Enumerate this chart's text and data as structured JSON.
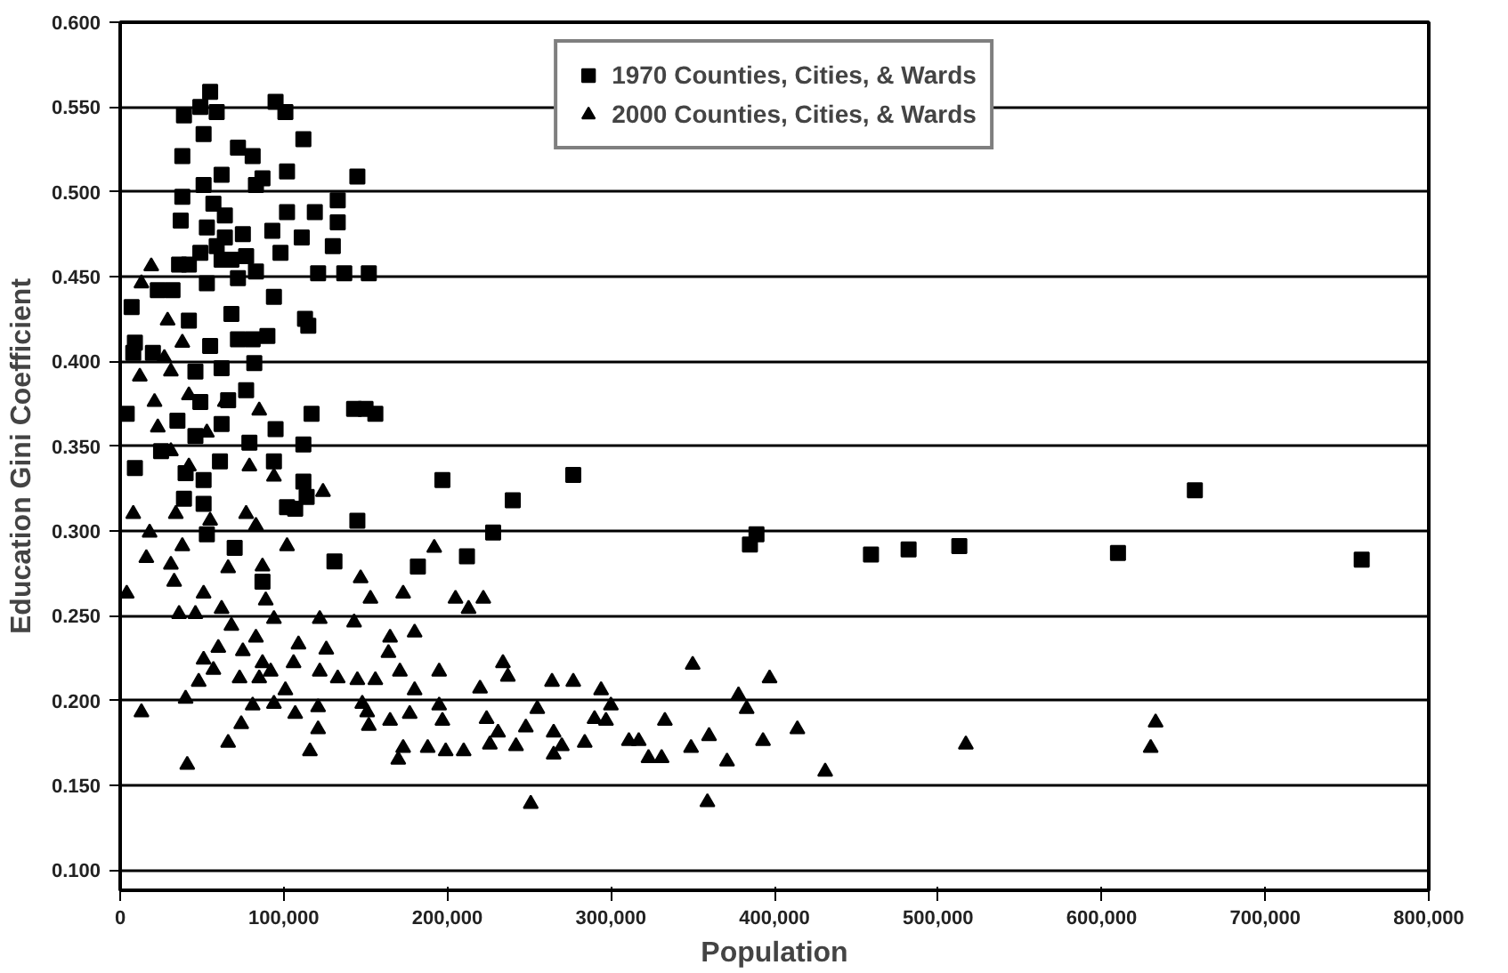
{
  "chart_data": {
    "type": "scatter",
    "xlabel": "Population",
    "ylabel": "Education Gini Coefficient",
    "xlim": [
      0,
      800000
    ],
    "ylim": [
      0.088,
      0.6
    ],
    "xticks": [
      0,
      {
        "value": 100000,
        "label": "100,000"
      },
      {
        "value": 200000,
        "label": "200,000"
      },
      {
        "value": 300000,
        "label": "300,000"
      },
      {
        "value": 400000,
        "label": "400,000"
      },
      {
        "value": 500000,
        "label": "500,000"
      },
      {
        "value": 600000,
        "label": "600,000"
      },
      {
        "value": 700000,
        "label": "700,000"
      },
      {
        "value": 800000,
        "label": "800,000"
      }
    ],
    "yticks": [
      {
        "value": 0.1,
        "label": "0.100"
      },
      {
        "value": 0.15,
        "label": "0.150"
      },
      {
        "value": 0.2,
        "label": "0.200"
      },
      {
        "value": 0.25,
        "label": "0.250"
      },
      {
        "value": 0.3,
        "label": "0.300"
      },
      {
        "value": 0.35,
        "label": "0.350"
      },
      {
        "value": 0.4,
        "label": "0.400"
      },
      {
        "value": 0.45,
        "label": "0.450"
      },
      {
        "value": 0.5,
        "label": "0.500"
      },
      {
        "value": 0.55,
        "label": "0.550"
      },
      {
        "value": 0.6,
        "label": "0.600"
      }
    ],
    "grid": "y",
    "legend": "top",
    "series": [
      {
        "name": "1970 Counties, Cities, & Wards",
        "color": "#000000",
        "marker": "square",
        "x": [
          55000,
          39000,
          49000,
          59000,
          95000,
          101000,
          112000,
          145000,
          38000,
          51000,
          72000,
          81000,
          102000,
          38000,
          51000,
          62000,
          87000,
          133000,
          102000,
          119000,
          133000,
          37000,
          53000,
          64000,
          93000,
          111000,
          130000,
          98000,
          77000,
          36000,
          49000,
          62000,
          121000,
          137000,
          152000,
          53000,
          72000,
          83000,
          94000,
          23000,
          32000,
          7000,
          42000,
          68000,
          113000,
          115000,
          9000,
          8000,
          20000,
          55000,
          72000,
          81000,
          90000,
          82000,
          62000,
          46000,
          77000,
          66000,
          4000,
          35000,
          49000,
          62000,
          95000,
          117000,
          112000,
          79000,
          46000,
          9000,
          25000,
          40000,
          94000,
          61000,
          51000,
          112000,
          114000,
          39000,
          51000,
          102000,
          107000,
          53000,
          70000,
          87000,
          57000,
          64000,
          59000,
          68000,
          75000,
          42000,
          83000,
          197000,
          228000,
          212000,
          182000,
          131000,
          145000,
          150000,
          143000,
          156000,
          277000,
          240000,
          385000,
          389000,
          459000,
          482000,
          513000,
          610000,
          657000,
          759000
        ],
        "values": [
          0.559,
          0.545,
          0.55,
          0.547,
          0.553,
          0.547,
          0.531,
          0.509,
          0.521,
          0.534,
          0.526,
          0.521,
          0.512,
          0.497,
          0.504,
          0.51,
          0.508,
          0.495,
          0.488,
          0.488,
          0.482,
          0.483,
          0.479,
          0.473,
          0.477,
          0.473,
          0.468,
          0.464,
          0.462,
          0.457,
          0.464,
          0.46,
          0.452,
          0.452,
          0.452,
          0.446,
          0.449,
          0.453,
          0.438,
          0.442,
          0.442,
          0.432,
          0.424,
          0.428,
          0.425,
          0.421,
          0.411,
          0.405,
          0.405,
          0.409,
          0.413,
          0.413,
          0.415,
          0.399,
          0.396,
          0.394,
          0.383,
          0.377,
          0.369,
          0.365,
          0.376,
          0.363,
          0.36,
          0.369,
          0.351,
          0.352,
          0.356,
          0.337,
          0.347,
          0.334,
          0.341,
          0.341,
          0.33,
          0.329,
          0.32,
          0.319,
          0.316,
          0.314,
          0.313,
          0.298,
          0.29,
          0.27,
          0.493,
          0.486,
          0.468,
          0.46,
          0.475,
          0.457,
          0.504,
          0.33,
          0.299,
          0.285,
          0.279,
          0.282,
          0.306,
          0.372,
          0.372,
          0.369,
          0.333,
          0.318,
          0.292,
          0.298,
          0.286,
          0.289,
          0.291,
          0.287,
          0.324,
          0.283
        ]
      },
      {
        "name": "2000 Counties, Cities, & Wards",
        "color": "#000000",
        "marker": "triangle",
        "x": [
          19000,
          13000,
          29000,
          38000,
          27000,
          12000,
          31000,
          42000,
          21000,
          23000,
          64000,
          85000,
          53000,
          31000,
          42000,
          79000,
          94000,
          124000,
          8000,
          18000,
          34000,
          77000,
          55000,
          83000,
          16000,
          38000,
          102000,
          31000,
          192000,
          66000,
          87000,
          4000,
          33000,
          51000,
          147000,
          173000,
          205000,
          222000,
          213000,
          153000,
          36000,
          46000,
          62000,
          89000,
          68000,
          94000,
          122000,
          143000,
          165000,
          180000,
          51000,
          60000,
          83000,
          109000,
          126000,
          164000,
          48000,
          57000,
          75000,
          87000,
          106000,
          73000,
          85000,
          92000,
          122000,
          133000,
          145000,
          156000,
          171000,
          195000,
          234000,
          40000,
          81000,
          94000,
          101000,
          121000,
          148000,
          180000,
          195000,
          220000,
          13000,
          74000,
          107000,
          121000,
          151000,
          165000,
          177000,
          197000,
          224000,
          66000,
          116000,
          152000,
          173000,
          188000,
          199000,
          210000,
          226000,
          170000,
          41000,
          237000,
          264000,
          277000,
          294000,
          350000,
          397000,
          378000,
          383000,
          414000,
          393000,
          431000,
          517000,
          633000,
          630000,
          251000,
          359000,
          333000,
          349000,
          371000,
          360000,
          323000,
          331000,
          311000,
          317000,
          300000,
          297000,
          290000,
          284000,
          270000,
          265000,
          265000,
          255000,
          248000,
          242000,
          231000
        ],
        "values": [
          0.456,
          0.446,
          0.424,
          0.411,
          0.402,
          0.391,
          0.394,
          0.38,
          0.376,
          0.361,
          0.376,
          0.371,
          0.358,
          0.347,
          0.338,
          0.338,
          0.332,
          0.323,
          0.31,
          0.299,
          0.31,
          0.31,
          0.306,
          0.303,
          0.284,
          0.291,
          0.291,
          0.28,
          0.29,
          0.278,
          0.279,
          0.263,
          0.27,
          0.263,
          0.272,
          0.263,
          0.26,
          0.26,
          0.254,
          0.26,
          0.251,
          0.251,
          0.254,
          0.259,
          0.244,
          0.248,
          0.248,
          0.246,
          0.237,
          0.24,
          0.224,
          0.231,
          0.237,
          0.233,
          0.23,
          0.228,
          0.211,
          0.218,
          0.229,
          0.222,
          0.222,
          0.213,
          0.213,
          0.217,
          0.217,
          0.213,
          0.212,
          0.212,
          0.217,
          0.217,
          0.222,
          0.201,
          0.197,
          0.198,
          0.206,
          0.196,
          0.198,
          0.206,
          0.197,
          0.207,
          0.193,
          0.186,
          0.192,
          0.183,
          0.193,
          0.188,
          0.192,
          0.188,
          0.189,
          0.175,
          0.17,
          0.185,
          0.172,
          0.172,
          0.17,
          0.17,
          0.174,
          0.165,
          0.162,
          0.214,
          0.211,
          0.211,
          0.206,
          0.221,
          0.213,
          0.203,
          0.195,
          0.183,
          0.176,
          0.158,
          0.174,
          0.187,
          0.172,
          0.139,
          0.14,
          0.188,
          0.172,
          0.164,
          0.179,
          0.166,
          0.166,
          0.176,
          0.176,
          0.197,
          0.188,
          0.189,
          0.175,
          0.173,
          0.168,
          0.181,
          0.195,
          0.184,
          0.173,
          0.181
        ]
      }
    ]
  }
}
